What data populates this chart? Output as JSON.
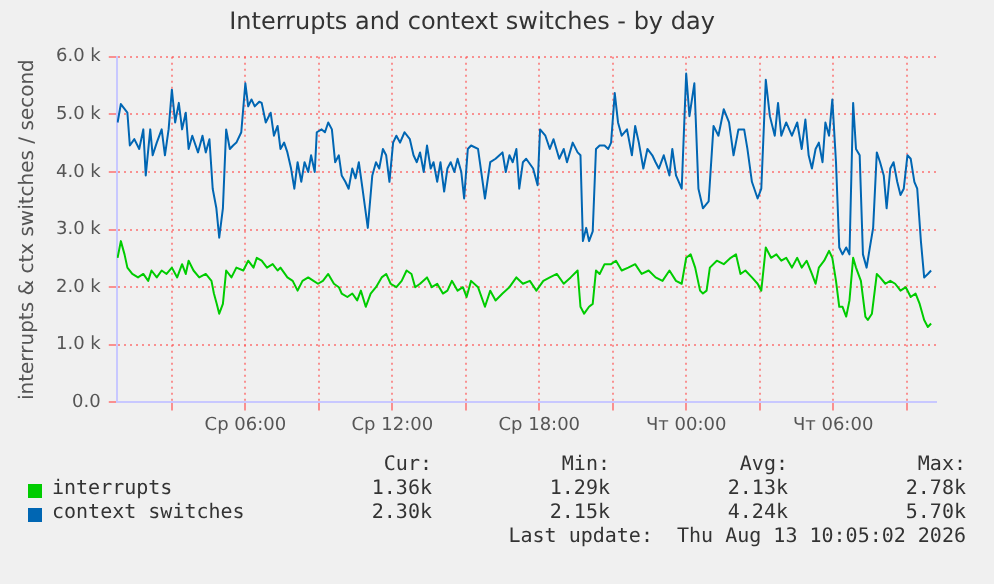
{
  "chart_data": {
    "type": "line",
    "title": "Interrupts and context switches - by day",
    "ylabel": "interrupts & ctx switches / second",
    "xlim": [
      "2026-08-12T00:45",
      "2026-08-13T10:12"
    ],
    "xticks": [
      {
        "value": "2026-08-12T03:00",
        "label": null
      },
      {
        "value": "2026-08-12T06:00",
        "label": "Ср 06:00"
      },
      {
        "value": "2026-08-12T09:00",
        "label": null
      },
      {
        "value": "2026-08-12T12:00",
        "label": "Ср 12:00"
      },
      {
        "value": "2026-08-12T15:00",
        "label": null
      },
      {
        "value": "2026-08-12T18:00",
        "label": "Ср 18:00"
      },
      {
        "value": "2026-08-12T21:00",
        "label": null
      },
      {
        "value": "2026-08-13T00:00",
        "label": "Чт 00:00"
      },
      {
        "value": "2026-08-13T03:00",
        "label": null
      },
      {
        "value": "2026-08-13T06:00",
        "label": "Чт 06:00"
      },
      {
        "value": "2026-08-13T09:00",
        "label": null
      }
    ],
    "ylim": [
      0,
      6000
    ],
    "yticks": [
      {
        "value": 0,
        "label": "0.0"
      },
      {
        "value": 1000,
        "label": "1.0 k"
      },
      {
        "value": 2000,
        "label": "2.0 k"
      },
      {
        "value": 3000,
        "label": "3.0 k"
      },
      {
        "value": 4000,
        "label": "4.0 k"
      },
      {
        "value": 5000,
        "label": "5.0 k"
      },
      {
        "value": 6000,
        "label": "6.0 k"
      }
    ],
    "grid": true,
    "legend": "bottom",
    "marker": "none",
    "line_style": "solid",
    "annotations": [
      "Cur:",
      "Min:",
      "Avg:",
      "Max:",
      "1.36k",
      "1.29k",
      "2.13k",
      "2.78k",
      "2.30k",
      "2.15k",
      "4.24k",
      "5.70k",
      "Last update:  Thu Aug 13 10:05:02 2026"
    ],
    "series": [
      {
        "name": "interrupts",
        "color": "#00cc00",
        "x": [
          "2026-08-12T00:47",
          "2026-08-12T00:55",
          "2026-08-12T01:04",
          "2026-08-12T01:11",
          "2026-08-12T01:23",
          "2026-08-12T01:37",
          "2026-08-12T01:50",
          "2026-08-12T02:02",
          "2026-08-12T02:10",
          "2026-08-12T02:23",
          "2026-08-12T02:35",
          "2026-08-12T02:47",
          "2026-08-12T03:00",
          "2026-08-12T03:13",
          "2026-08-12T03:25",
          "2026-08-12T03:34",
          "2026-08-12T03:41",
          "2026-08-12T03:53",
          "2026-08-12T04:07",
          "2026-08-12T04:23",
          "2026-08-12T04:37",
          "2026-08-12T04:43",
          "2026-08-12T04:50",
          "2026-08-12T04:56",
          "2026-08-12T05:05",
          "2026-08-12T05:13",
          "2026-08-12T05:26",
          "2026-08-12T05:38",
          "2026-08-12T05:55",
          "2026-08-12T06:07",
          "2026-08-12T06:20",
          "2026-08-12T06:28",
          "2026-08-12T06:40",
          "2026-08-12T06:53",
          "2026-08-12T07:07",
          "2026-08-12T07:19",
          "2026-08-12T07:26",
          "2026-08-12T07:43",
          "2026-08-12T07:56",
          "2026-08-12T08:08",
          "2026-08-12T08:20",
          "2026-08-12T08:34",
          "2026-08-12T08:47",
          "2026-08-12T08:58",
          "2026-08-12T09:10",
          "2026-08-12T09:23",
          "2026-08-12T09:37",
          "2026-08-12T09:49",
          "2026-08-12T09:56",
          "2026-08-12T10:10",
          "2026-08-12T10:22",
          "2026-08-12T10:34",
          "2026-08-12T10:43",
          "2026-08-12T10:55",
          "2026-08-12T11:07",
          "2026-08-12T11:20",
          "2026-08-12T11:34",
          "2026-08-12T11:45",
          "2026-08-12T11:56",
          "2026-08-12T12:10",
          "2026-08-12T12:23",
          "2026-08-12T12:35",
          "2026-08-12T12:47",
          "2026-08-12T12:56",
          "2026-08-12T13:08",
          "2026-08-12T13:25",
          "2026-08-12T13:37",
          "2026-08-12T13:50",
          "2026-08-12T14:04",
          "2026-08-12T14:15",
          "2026-08-12T14:26",
          "2026-08-12T14:40",
          "2026-08-12T14:53",
          "2026-08-12T15:02",
          "2026-08-12T15:13",
          "2026-08-12T15:30",
          "2026-08-12T15:47",
          "2026-08-12T16:00",
          "2026-08-12T16:13",
          "2026-08-12T16:30",
          "2026-08-12T16:47",
          "2026-08-12T17:04",
          "2026-08-12T17:20",
          "2026-08-12T17:37",
          "2026-08-12T17:53",
          "2026-08-12T18:10",
          "2026-08-12T18:26",
          "2026-08-12T18:43",
          "2026-08-12T19:00",
          "2026-08-12T19:17",
          "2026-08-12T19:34",
          "2026-08-12T19:41",
          "2026-08-12T19:50",
          "2026-08-12T20:02",
          "2026-08-12T20:11",
          "2026-08-12T20:19",
          "2026-08-12T20:28",
          "2026-08-12T20:40",
          "2026-08-12T20:56",
          "2026-08-12T21:08",
          "2026-08-12T21:22",
          "2026-08-12T21:38",
          "2026-08-12T21:55",
          "2026-08-12T22:11",
          "2026-08-12T22:28",
          "2026-08-12T22:45",
          "2026-08-12T23:02",
          "2026-08-12T23:19",
          "2026-08-12T23:35",
          "2026-08-12T23:49",
          "2026-08-13T00:00",
          "2026-08-13T00:11",
          "2026-08-13T00:22",
          "2026-08-13T00:34",
          "2026-08-13T00:41",
          "2026-08-13T00:50",
          "2026-08-13T00:58",
          "2026-08-13T01:15",
          "2026-08-13T01:32",
          "2026-08-13T01:49",
          "2026-08-13T02:02",
          "2026-08-13T02:13",
          "2026-08-13T02:25",
          "2026-08-13T02:41",
          "2026-08-13T02:55",
          "2026-08-13T03:04",
          "2026-08-13T03:15",
          "2026-08-13T03:28",
          "2026-08-13T03:41",
          "2026-08-13T03:53",
          "2026-08-13T04:05",
          "2026-08-13T04:19",
          "2026-08-13T04:32",
          "2026-08-13T04:43",
          "2026-08-13T04:55",
          "2026-08-13T05:08",
          "2026-08-13T05:17",
          "2026-08-13T05:25",
          "2026-08-13T05:38",
          "2026-08-13T05:50",
          "2026-08-13T05:58",
          "2026-08-13T06:07",
          "2026-08-13T06:15",
          "2026-08-13T06:23",
          "2026-08-13T06:32",
          "2026-08-13T06:40",
          "2026-08-13T06:49",
          "2026-08-13T06:56",
          "2026-08-13T07:08",
          "2026-08-13T07:19",
          "2026-08-13T07:25",
          "2026-08-13T07:35",
          "2026-08-13T07:47",
          "2026-08-13T07:55",
          "2026-08-13T08:08",
          "2026-08-13T08:20",
          "2026-08-13T08:32",
          "2026-08-13T08:45",
          "2026-08-13T08:58",
          "2026-08-13T09:10",
          "2026-08-13T09:22",
          "2026-08-13T09:32",
          "2026-08-13T09:43",
          "2026-08-13T09:52",
          "2026-08-13T10:00"
        ],
        "values": [
          2510,
          2800,
          2570,
          2340,
          2230,
          2170,
          2230,
          2110,
          2290,
          2170,
          2290,
          2230,
          2340,
          2170,
          2400,
          2230,
          2460,
          2290,
          2170,
          2230,
          2110,
          1890,
          1710,
          1540,
          1710,
          2290,
          2170,
          2340,
          2290,
          2460,
          2340,
          2510,
          2460,
          2340,
          2400,
          2290,
          2340,
          2170,
          2110,
          1940,
          2110,
          2170,
          2110,
          2060,
          2110,
          2230,
          2060,
          2000,
          1890,
          1830,
          1890,
          1770,
          1940,
          1660,
          1890,
          2000,
          2170,
          2230,
          2060,
          2000,
          2110,
          2290,
          2230,
          2000,
          2060,
          2170,
          2000,
          2060,
          1890,
          1940,
          2110,
          1940,
          2000,
          1830,
          2110,
          2000,
          1660,
          1940,
          1770,
          1890,
          2000,
          2170,
          2060,
          2110,
          1940,
          2110,
          2170,
          2230,
          2060,
          2170,
          2290,
          1660,
          1540,
          1660,
          1710,
          2290,
          2230,
          2400,
          2400,
          2460,
          2290,
          2340,
          2400,
          2230,
          2290,
          2170,
          2110,
          2290,
          2110,
          2060,
          2510,
          2570,
          2340,
          1940,
          1890,
          1940,
          2340,
          2460,
          2400,
          2510,
          2570,
          2230,
          2290,
          2170,
          2060,
          1940,
          2690,
          2510,
          2570,
          2460,
          2510,
          2340,
          2510,
          2340,
          2460,
          2230,
          2060,
          2340,
          2460,
          2630,
          2510,
          2110,
          1660,
          1660,
          1490,
          1770,
          2510,
          2340,
          2110,
          1490,
          1430,
          1540,
          2230,
          2170,
          2060,
          2110,
          2060,
          1940,
          2000,
          1830,
          1890,
          1710,
          1430,
          1310,
          1370
        ]
      },
      {
        "name": "context switches",
        "color": "#0066b3",
        "x": [
          "2026-08-12T00:47",
          "2026-08-12T00:55",
          "2026-08-12T01:11",
          "2026-08-12T01:17",
          "2026-08-12T01:28",
          "2026-08-12T01:40",
          "2026-08-12T01:50",
          "2026-08-12T01:56",
          "2026-08-12T02:07",
          "2026-08-12T02:13",
          "2026-08-12T02:23",
          "2026-08-12T02:35",
          "2026-08-12T02:43",
          "2026-08-12T02:52",
          "2026-08-12T03:00",
          "2026-08-12T03:08",
          "2026-08-12T03:17",
          "2026-08-12T03:25",
          "2026-08-12T03:34",
          "2026-08-12T03:41",
          "2026-08-12T03:50",
          "2026-08-12T04:04",
          "2026-08-12T04:15",
          "2026-08-12T04:23",
          "2026-08-12T04:32",
          "2026-08-12T04:40",
          "2026-08-12T04:49",
          "2026-08-12T04:56",
          "2026-08-12T05:05",
          "2026-08-12T05:13",
          "2026-08-12T05:22",
          "2026-08-12T05:30",
          "2026-08-12T05:38",
          "2026-08-12T05:50",
          "2026-08-12T06:00",
          "2026-08-12T06:07",
          "2026-08-12T06:15",
          "2026-08-12T06:23",
          "2026-08-12T06:34",
          "2026-08-12T06:40",
          "2026-08-12T06:50",
          "2026-08-12T07:02",
          "2026-08-12T07:10",
          "2026-08-12T07:19",
          "2026-08-12T07:26",
          "2026-08-12T07:35",
          "2026-08-12T07:43",
          "2026-08-12T07:52",
          "2026-08-12T08:00",
          "2026-08-12T08:08",
          "2026-08-12T08:17",
          "2026-08-12T08:25",
          "2026-08-12T08:34",
          "2026-08-12T08:41",
          "2026-08-12T08:50",
          "2026-08-12T08:55",
          "2026-08-12T09:07",
          "2026-08-12T09:15",
          "2026-08-12T09:23",
          "2026-08-12T09:32",
          "2026-08-12T09:40",
          "2026-08-12T09:49",
          "2026-08-12T09:56",
          "2026-08-12T10:05",
          "2026-08-12T10:13",
          "2026-08-12T10:22",
          "2026-08-12T10:30",
          "2026-08-12T10:38",
          "2026-08-12T10:47",
          "2026-08-12T11:00",
          "2026-08-12T11:11",
          "2026-08-12T11:20",
          "2026-08-12T11:28",
          "2026-08-12T11:37",
          "2026-08-12T11:45",
          "2026-08-12T11:53",
          "2026-08-12T12:02",
          "2026-08-12T12:10",
          "2026-08-12T12:19",
          "2026-08-12T12:30",
          "2026-08-12T12:43",
          "2026-08-12T12:52",
          "2026-08-12T13:00",
          "2026-08-12T13:08",
          "2026-08-12T13:17",
          "2026-08-12T13:25",
          "2026-08-12T13:34",
          "2026-08-12T13:41",
          "2026-08-12T13:50",
          "2026-08-12T13:58",
          "2026-08-12T14:07",
          "2026-08-12T14:15",
          "2026-08-12T14:23",
          "2026-08-12T14:32",
          "2026-08-12T14:40",
          "2026-08-12T14:49",
          "2026-08-12T14:56",
          "2026-08-12T15:05",
          "2026-08-12T15:13",
          "2026-08-12T15:30",
          "2026-08-12T15:47",
          "2026-08-12T16:00",
          "2026-08-12T16:13",
          "2026-08-12T16:30",
          "2026-08-12T16:38",
          "2026-08-12T16:47",
          "2026-08-12T16:55",
          "2026-08-12T17:04",
          "2026-08-12T17:11",
          "2026-08-12T17:20",
          "2026-08-12T17:28",
          "2026-08-12T17:45",
          "2026-08-12T17:56",
          "2026-08-12T18:02",
          "2026-08-12T18:15",
          "2026-08-12T18:26",
          "2026-08-12T18:35",
          "2026-08-12T18:49",
          "2026-08-12T19:00",
          "2026-08-12T19:08",
          "2026-08-12T19:22",
          "2026-08-12T19:34",
          "2026-08-12T19:41",
          "2026-08-12T19:47",
          "2026-08-12T19:55",
          "2026-08-12T20:02",
          "2026-08-12T20:11",
          "2026-08-12T20:19",
          "2026-08-12T20:28",
          "2026-08-12T20:40",
          "2026-08-12T20:49",
          "2026-08-12T20:56",
          "2026-08-12T21:05",
          "2026-08-12T21:13",
          "2026-08-12T21:22",
          "2026-08-12T21:35",
          "2026-08-12T21:47",
          "2026-08-12T21:55",
          "2026-08-12T22:04",
          "2026-08-12T22:15",
          "2026-08-12T22:25",
          "2026-08-12T22:37",
          "2026-08-12T22:45",
          "2026-08-12T22:53",
          "2026-08-12T23:05",
          "2026-08-12T23:19",
          "2026-08-12T23:26",
          "2026-08-12T23:35",
          "2026-08-12T23:49",
          "2026-08-13T00:00",
          "2026-08-13T00:08",
          "2026-08-13T00:20",
          "2026-08-13T00:30",
          "2026-08-13T00:41",
          "2026-08-13T00:55",
          "2026-08-13T01:07",
          "2026-08-13T01:19",
          "2026-08-13T01:32",
          "2026-08-13T01:45",
          "2026-08-13T01:56",
          "2026-08-13T02:08",
          "2026-08-13T02:22",
          "2026-08-13T02:30",
          "2026-08-13T02:41",
          "2026-08-13T02:55",
          "2026-08-13T03:04",
          "2026-08-13T03:15",
          "2026-08-13T03:25",
          "2026-08-13T03:37",
          "2026-08-13T03:45",
          "2026-08-13T03:53",
          "2026-08-13T04:05",
          "2026-08-13T04:19",
          "2026-08-13T04:32",
          "2026-08-13T04:43",
          "2026-08-13T04:52",
          "2026-08-13T05:00",
          "2026-08-13T05:08",
          "2026-08-13T05:17",
          "2026-08-13T05:25",
          "2026-08-13T05:34",
          "2026-08-13T05:41",
          "2026-08-13T05:50",
          "2026-08-13T05:58",
          "2026-08-13T06:07",
          "2026-08-13T06:15",
          "2026-08-13T06:23",
          "2026-08-13T06:32",
          "2026-08-13T06:40",
          "2026-08-13T06:49",
          "2026-08-13T06:56",
          "2026-08-13T07:05",
          "2026-08-13T07:13",
          "2026-08-13T07:22",
          "2026-08-13T07:30",
          "2026-08-13T07:38",
          "2026-08-13T07:47",
          "2026-08-13T07:55",
          "2026-08-13T08:04",
          "2026-08-13T08:11",
          "2026-08-13T08:20",
          "2026-08-13T08:28",
          "2026-08-13T08:37",
          "2026-08-13T08:45",
          "2026-08-13T08:53",
          "2026-08-13T09:02",
          "2026-08-13T09:10",
          "2026-08-13T09:19",
          "2026-08-13T09:26",
          "2026-08-13T09:35",
          "2026-08-13T09:43",
          "2026-08-13T09:52",
          "2026-08-13T10:00"
        ],
        "values": [
          4860,
          5180,
          5030,
          4460,
          4570,
          4400,
          4740,
          3940,
          4740,
          4290,
          4510,
          4740,
          4290,
          4740,
          5430,
          4860,
          5200,
          4740,
          5030,
          4400,
          4630,
          4340,
          4630,
          4340,
          4570,
          3710,
          3370,
          2860,
          3370,
          4740,
          4400,
          4460,
          4510,
          4690,
          5540,
          5140,
          5260,
          5140,
          5220,
          5200,
          4860,
          5030,
          4630,
          4800,
          4400,
          4510,
          4340,
          4060,
          3710,
          4170,
          3830,
          4170,
          4000,
          4290,
          4000,
          4690,
          4740,
          4690,
          4860,
          4740,
          4170,
          4290,
          3940,
          3830,
          3710,
          4060,
          3890,
          4170,
          3710,
          3030,
          3940,
          4170,
          4060,
          4400,
          4290,
          3830,
          4510,
          4630,
          4510,
          4690,
          4570,
          4290,
          4170,
          4340,
          4000,
          4460,
          4060,
          4170,
          3830,
          4170,
          3660,
          4060,
          4170,
          4000,
          4230,
          4000,
          3540,
          4400,
          4460,
          4400,
          3540,
          4170,
          4230,
          4340,
          4000,
          4290,
          4170,
          4400,
          3710,
          4170,
          4230,
          4060,
          3770,
          4740,
          4630,
          4400,
          4570,
          4230,
          4400,
          4170,
          4510,
          4340,
          4290,
          2800,
          3030,
          2800,
          2970,
          4400,
          4460,
          4460,
          4400,
          4510,
          5370,
          4860,
          4630,
          4740,
          4290,
          4800,
          4510,
          4060,
          4400,
          4290,
          4170,
          4060,
          4290,
          3940,
          4400,
          3940,
          3710,
          5710,
          4970,
          5540,
          3710,
          3370,
          3490,
          4800,
          4630,
          5090,
          4860,
          4290,
          4740,
          4740,
          4400,
          3830,
          3540,
          3710,
          5600,
          4970,
          4630,
          5200,
          4630,
          4860,
          4630,
          4860,
          4400,
          4910,
          4290,
          4060,
          4400,
          4510,
          4170,
          4860,
          4630,
          5260,
          4170,
          2690,
          2570,
          2690,
          2570,
          5200,
          4400,
          4290,
          2570,
          2340,
          2690,
          3030,
          4340,
          4170,
          3940,
          3370,
          4060,
          4170,
          3830,
          3600,
          3710,
          4290,
          4230,
          3830,
          3710,
          2800,
          2170,
          2230,
          2290
        ]
      }
    ]
  }
}
